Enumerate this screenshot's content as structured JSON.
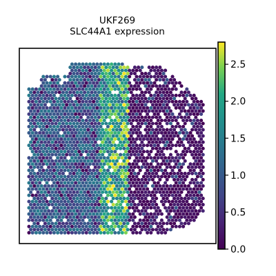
{
  "chart_data": {
    "type": "scatter",
    "title": "UKF269",
    "subtitle": "SLC44A1 expression",
    "xlabel": "",
    "ylabel": "",
    "axes_ticks": false,
    "colormap": "viridis",
    "colorbar": {
      "vmin": 0.0,
      "vmax": 2.8,
      "ticks": [
        0.0,
        0.5,
        1.0,
        1.5,
        2.0,
        2.5
      ],
      "tick_labels": [
        "0.0",
        "0.5",
        "1.0",
        "1.5",
        "2.0",
        "2.5"
      ],
      "placement": "right"
    },
    "series": [
      {
        "description_of_pattern": [
          {
            "region": "left tissue block",
            "expression_range": [
              0.5,
              1.5
            ]
          },
          {
            "region": "central vertical band",
            "expression_range": [
              1.5,
              2.8
            ]
          },
          {
            "region": "right tissue block",
            "expression_range": [
              0.0,
              0.6
            ]
          }
        ]
      }
    ]
  }
}
